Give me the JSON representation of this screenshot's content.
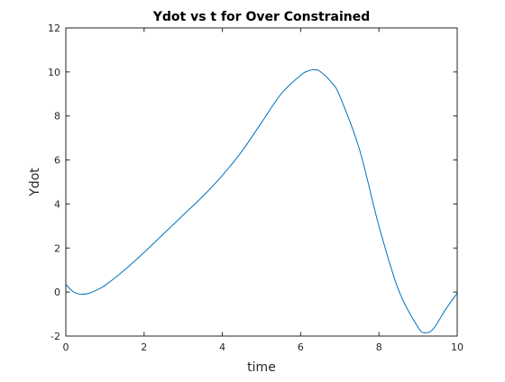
{
  "chart_data": {
    "type": "line",
    "title": "Ydot vs t for Over Constrained",
    "xlabel": "time",
    "ylabel": "Ydot",
    "xlim": [
      0,
      10
    ],
    "ylim": [
      -2,
      12
    ],
    "xticks": [
      0,
      2,
      4,
      6,
      8,
      10
    ],
    "yticks": [
      -2,
      0,
      2,
      4,
      6,
      8,
      10,
      12
    ],
    "xtick_labels": [
      "0",
      "2",
      "4",
      "6",
      "8",
      "10"
    ],
    "ytick_labels": [
      "-2",
      "0",
      "2",
      "4",
      "6",
      "8",
      "10",
      "12"
    ],
    "grid": false,
    "legend": "none",
    "series_color": "#0072BD",
    "series": [
      {
        "x": [
          0,
          0.2,
          0.4,
          0.6,
          0.8,
          1.0,
          1.5,
          2.0,
          2.5,
          3.0,
          3.5,
          4.0,
          4.5,
          5.0,
          5.5,
          6.0,
          6.2,
          6.35,
          6.5,
          6.8,
          7.0,
          7.5,
          8.0,
          8.5,
          9.0,
          9.2,
          9.4,
          9.7,
          10.0
        ],
        "y": [
          0.35,
          0.0,
          -0.1,
          -0.05,
          0.1,
          0.3,
          1.0,
          1.8,
          2.65,
          3.5,
          4.35,
          5.3,
          6.4,
          7.7,
          9.0,
          9.85,
          10.05,
          10.1,
          10.02,
          9.5,
          8.9,
          6.5,
          3.0,
          0.1,
          -1.6,
          -1.85,
          -1.65,
          -0.8,
          -0.05
        ]
      }
    ]
  }
}
